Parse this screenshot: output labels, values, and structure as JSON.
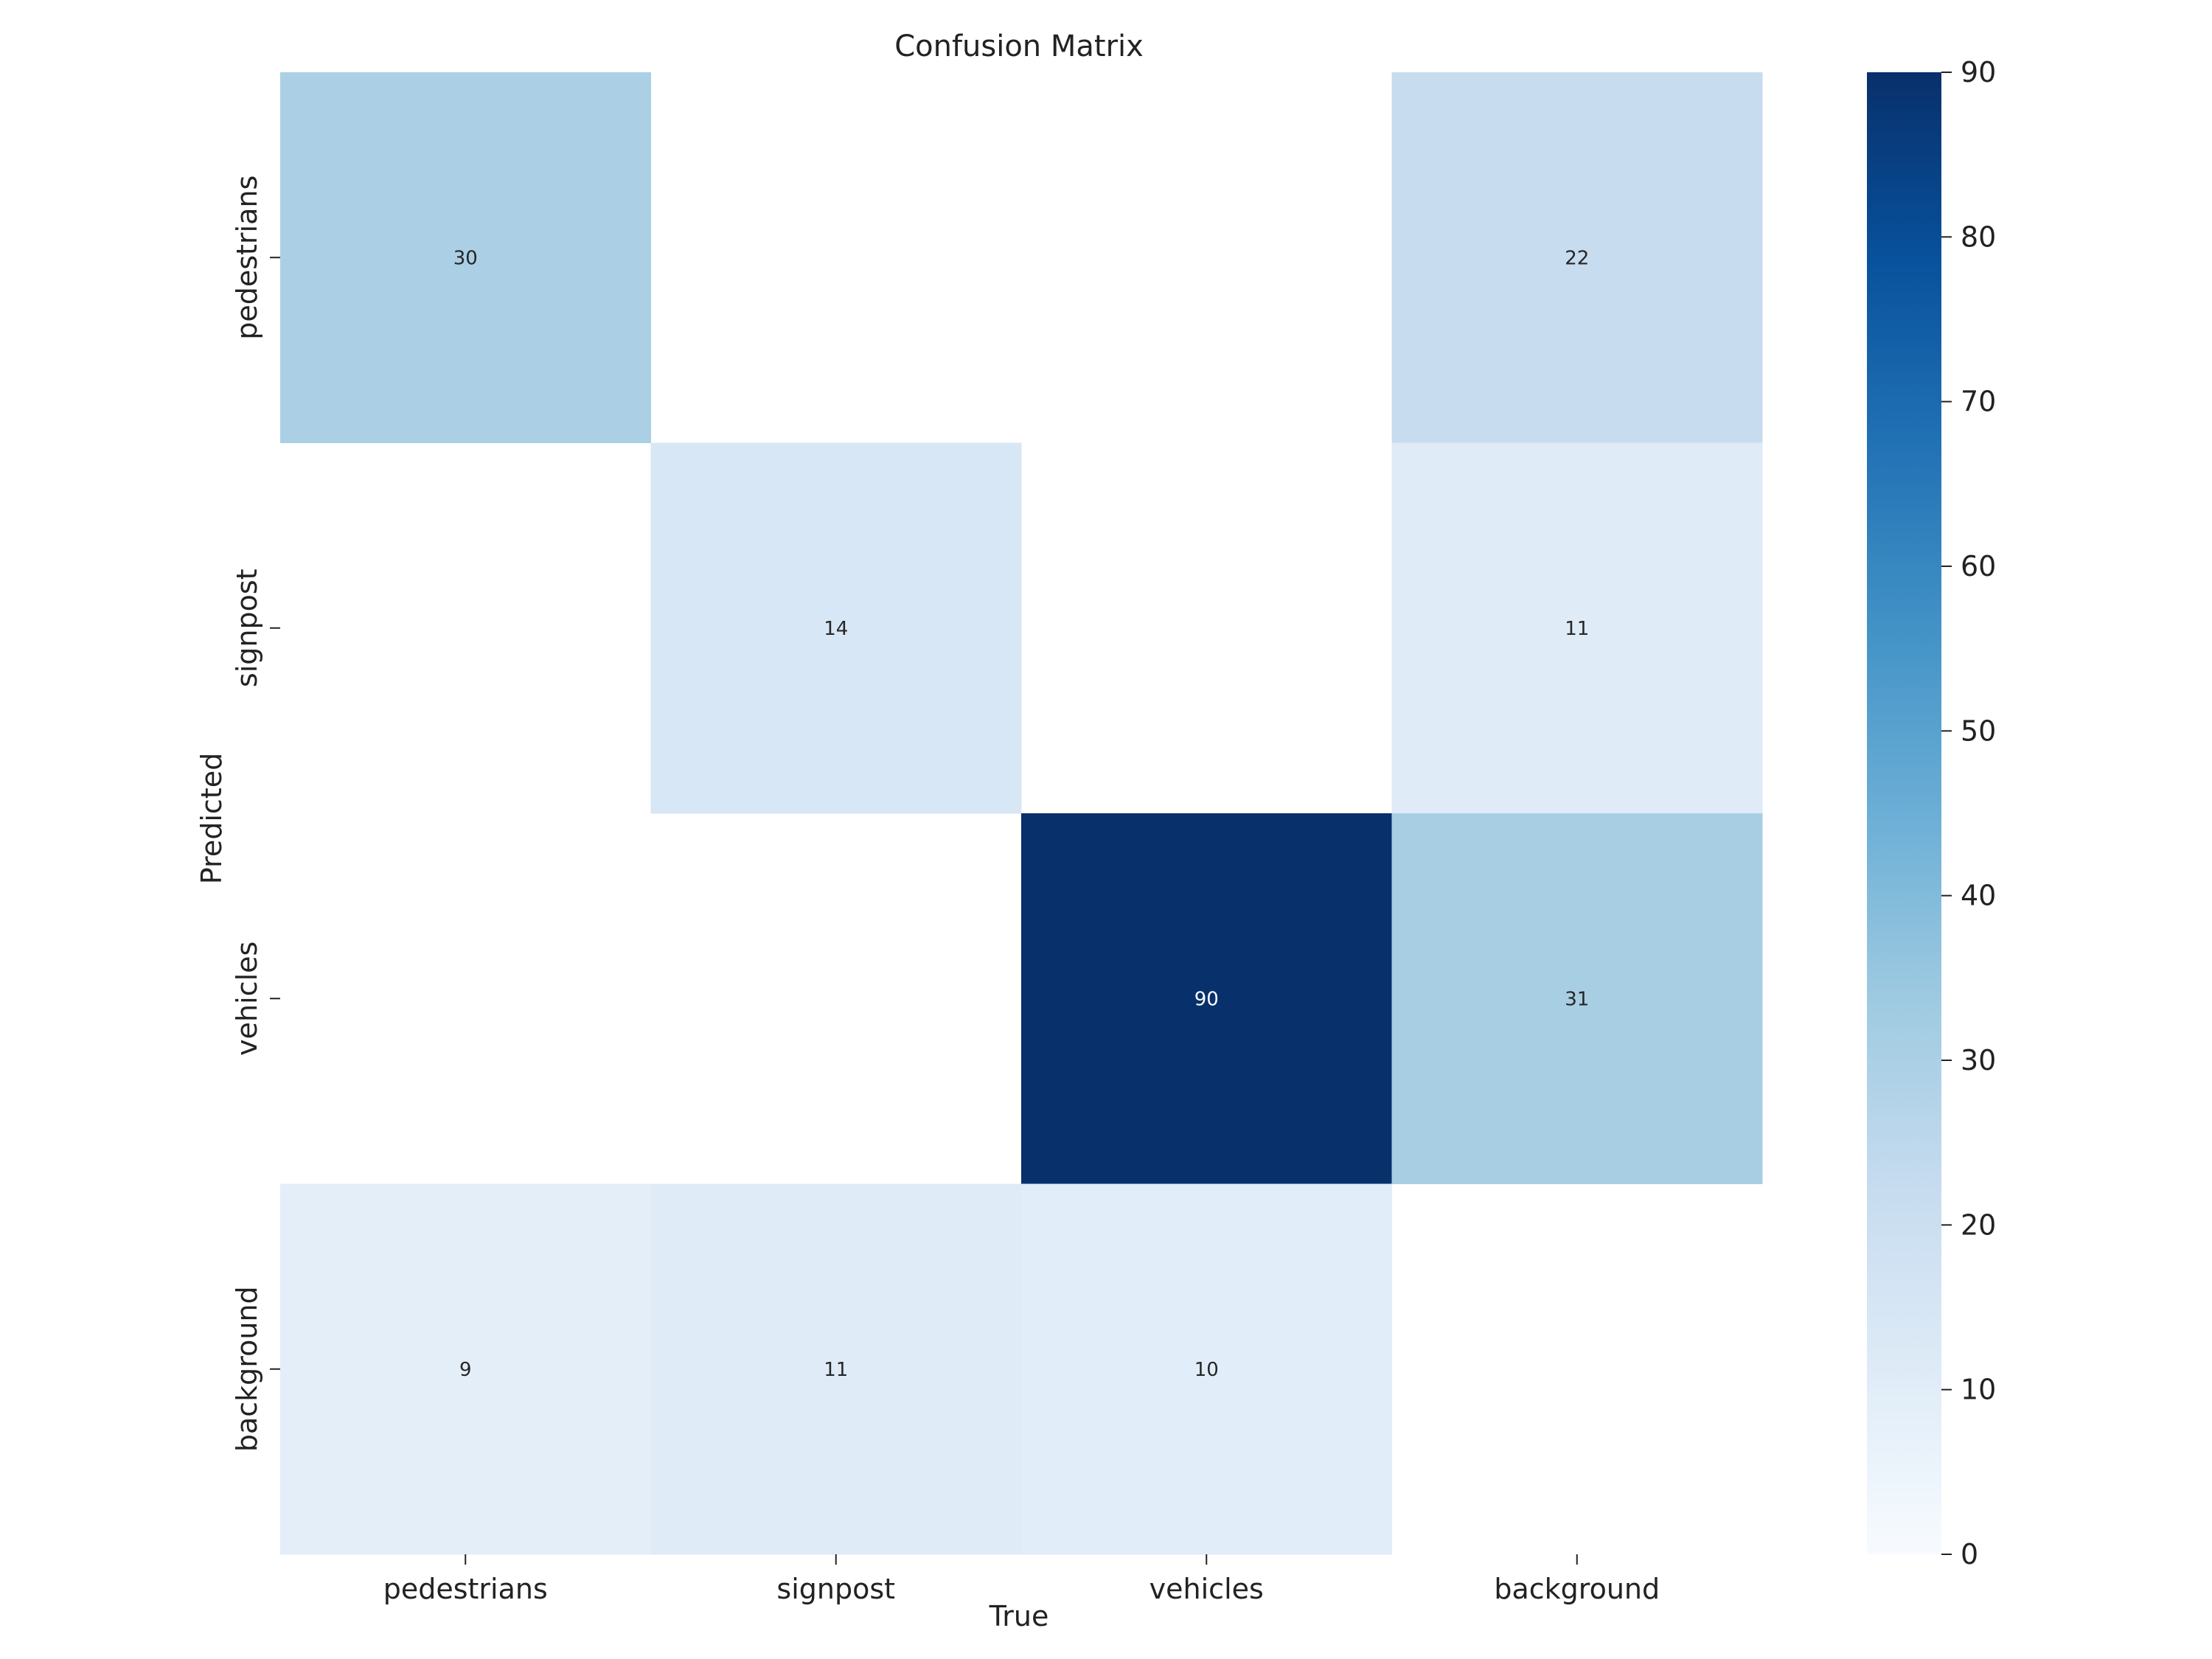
{
  "chart_data": {
    "type": "heatmap",
    "title": "Confusion Matrix",
    "xlabel": "True",
    "ylabel": "Predicted",
    "x_categories": [
      "pedestrians",
      "signpost",
      "vehicles",
      "background"
    ],
    "y_categories": [
      "pedestrians",
      "signpost",
      "vehicles",
      "background"
    ],
    "values": [
      [
        30,
        null,
        null,
        22
      ],
      [
        null,
        14,
        null,
        11
      ],
      [
        null,
        null,
        90,
        31
      ],
      [
        9,
        11,
        10,
        null
      ]
    ],
    "colorbar": {
      "range": [
        0,
        90
      ],
      "ticks": [
        "0",
        "10",
        "20",
        "30",
        "40",
        "50",
        "60",
        "70",
        "80",
        "90"
      ],
      "colormap": "Blues"
    }
  }
}
